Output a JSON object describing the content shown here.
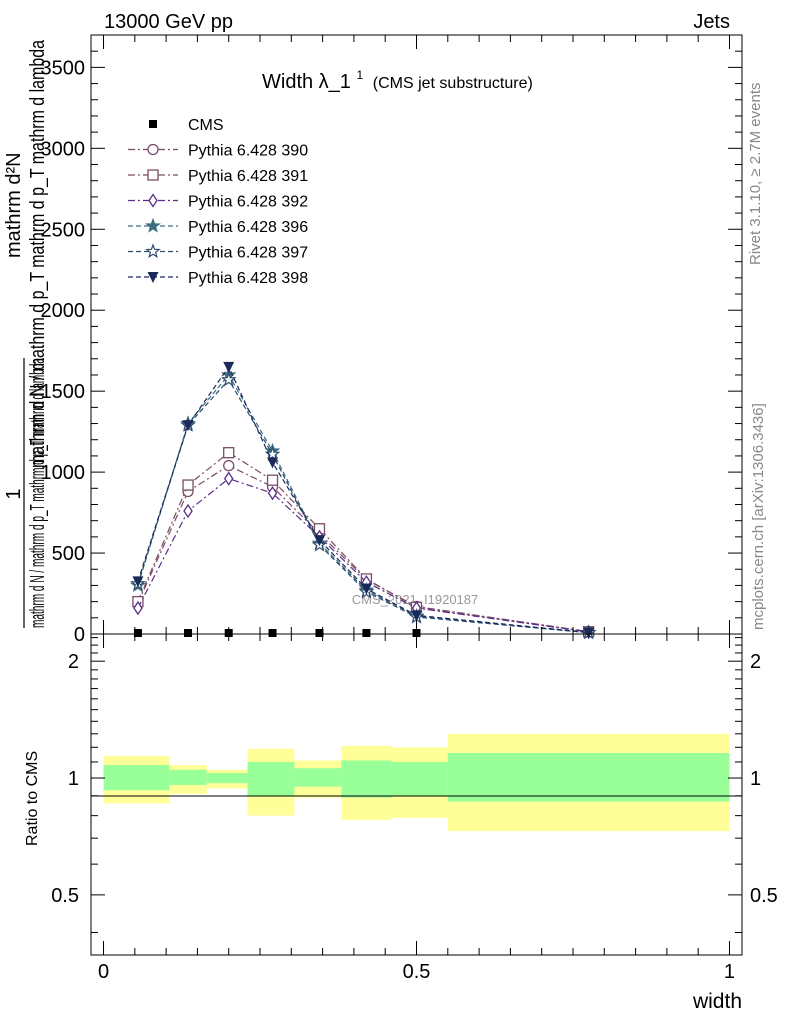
{
  "header": {
    "left": "13000 GeV pp",
    "right": "Jets"
  },
  "side_labels": {
    "rivet": "Rivet 3.1.10, ≥ 2.7M events",
    "mcplots": "mcplots.cern.ch [arXiv:1306.3436]"
  },
  "chart_data": [
    {
      "type": "line",
      "panel": "main",
      "title": "Width λ_1¹ (CMS jet substructure)",
      "title_main": "Width λ_1",
      "title_sup": "1",
      "title_paren": "(CMS jet substructure)",
      "watermark": "CMS_2021_I1920187",
      "ylabel_num": "1",
      "ylabel_den": "mathrm d N / mathrm d p_T mathrm d p_T mathrm d lambda",
      "ylabel_top": "mathrm d²N",
      "xlim": [
        -0.02,
        1.02
      ],
      "ylim": [
        0,
        3700
      ],
      "yticks": [
        0,
        500,
        1000,
        1500,
        2000,
        2500,
        3000,
        3500
      ],
      "ytick_labels": [
        "0",
        "500",
        "1000",
        "1500",
        "2000",
        "2500",
        "3000",
        "3500"
      ],
      "legend_position": "top-left",
      "x": [
        0.055,
        0.135,
        0.2,
        0.27,
        0.345,
        0.42,
        0.5,
        0.775
      ],
      "series": [
        {
          "name": "CMS",
          "color": "#000000",
          "marker": "filled-square",
          "line": "none",
          "values": [
            0,
            0,
            0,
            0,
            0,
            0,
            0,
            null
          ]
        },
        {
          "name": "Pythia 6.428 390",
          "color": "#7a4a6e",
          "marker": "open-circle",
          "line": "dashdot",
          "values": [
            190,
            880,
            1040,
            910,
            620,
            335,
            170,
            15
          ]
        },
        {
          "name": "Pythia 6.428 391",
          "color": "#7a4e5e",
          "marker": "open-square",
          "line": "dashdot",
          "values": [
            200,
            920,
            1120,
            950,
            650,
            340,
            165,
            14
          ]
        },
        {
          "name": "Pythia 6.428 392",
          "color": "#5a2e8a",
          "marker": "open-diamond",
          "line": "dashdot",
          "values": [
            160,
            760,
            960,
            870,
            600,
            320,
            160,
            13
          ]
        },
        {
          "name": "Pythia 6.428 396",
          "color": "#3c6e80",
          "marker": "filled-star",
          "line": "dashed",
          "values": [
            300,
            1300,
            1600,
            1130,
            560,
            270,
            110,
            8
          ]
        },
        {
          "name": "Pythia 6.428 397",
          "color": "#2e4e72",
          "marker": "open-star",
          "line": "dashed",
          "values": [
            310,
            1290,
            1570,
            1110,
            550,
            260,
            105,
            8
          ]
        },
        {
          "name": "Pythia 6.428 398",
          "color": "#1a2a5a",
          "marker": "filled-triangle-down",
          "line": "dashed",
          "values": [
            325,
            1290,
            1650,
            1060,
            580,
            280,
            115,
            9
          ]
        }
      ]
    },
    {
      "type": "area",
      "panel": "ratio",
      "ylabel": "Ratio to CMS",
      "xlabel": "width",
      "xlim": [
        -0.02,
        1.02
      ],
      "xticks": [
        0,
        0.5,
        1
      ],
      "xtick_labels": [
        "0",
        "0.5",
        "1"
      ],
      "yrange": [
        0.35,
        2.35
      ],
      "yticks": [
        0.5,
        1,
        2
      ],
      "ytick_labels": [
        "0.5",
        "1",
        "2"
      ],
      "bins": [
        {
          "x0": 0.0,
          "x1": 0.105,
          "inner": [
            0.93,
            1.08
          ],
          "outer": [
            0.86,
            1.14
          ]
        },
        {
          "x0": 0.105,
          "x1": 0.165,
          "inner": [
            0.96,
            1.05
          ],
          "outer": [
            0.91,
            1.08
          ]
        },
        {
          "x0": 0.165,
          "x1": 0.23,
          "inner": [
            0.97,
            1.03
          ],
          "outer": [
            0.94,
            1.05
          ]
        },
        {
          "x0": 0.23,
          "x1": 0.305,
          "inner": [
            0.9,
            1.1
          ],
          "outer": [
            0.8,
            1.19
          ]
        },
        {
          "x0": 0.305,
          "x1": 0.38,
          "inner": [
            0.95,
            1.06
          ],
          "outer": [
            0.89,
            1.11
          ]
        },
        {
          "x0": 0.38,
          "x1": 0.46,
          "inner": [
            0.89,
            1.11
          ],
          "outer": [
            0.78,
            1.21
          ]
        },
        {
          "x0": 0.46,
          "x1": 0.55,
          "inner": [
            0.9,
            1.1
          ],
          "outer": [
            0.79,
            1.2
          ]
        },
        {
          "x0": 0.55,
          "x1": 1.0,
          "inner": [
            0.87,
            1.16
          ],
          "outer": [
            0.73,
            1.3
          ]
        }
      ],
      "inner_color": "#99ff99",
      "outer_color": "#ffff99"
    }
  ]
}
